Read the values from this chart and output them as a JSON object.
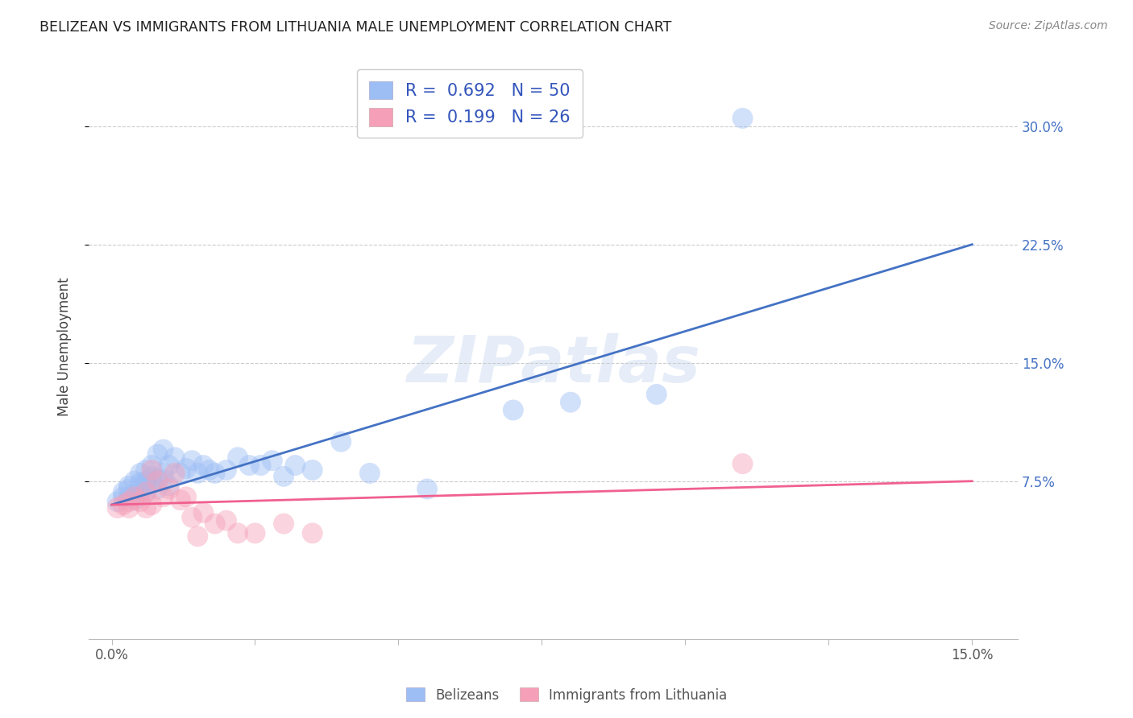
{
  "title": "BELIZEAN VS IMMIGRANTS FROM LITHUANIA MALE UNEMPLOYMENT CORRELATION CHART",
  "source": "Source: ZipAtlas.com",
  "ylabel": "Male Unemployment",
  "watermark": "ZIPatlas",
  "legend_blue_R": "0.692",
  "legend_blue_N": "50",
  "legend_pink_R": "0.199",
  "legend_pink_N": "26",
  "legend_label_blue": "Belizeans",
  "legend_label_pink": "Immigrants from Lithuania",
  "x_tick_positions": [
    0.0,
    0.025,
    0.05,
    0.075,
    0.1,
    0.125,
    0.15
  ],
  "x_tick_labels": [
    "0.0%",
    "",
    "",
    "",
    "",
    "",
    "15.0%"
  ],
  "y_tick_positions": [
    0.075,
    0.15,
    0.225,
    0.3
  ],
  "y_tick_labels": [
    "7.5%",
    "15.0%",
    "22.5%",
    "30.0%"
  ],
  "xlim": [
    -0.004,
    0.158
  ],
  "ylim": [
    -0.025,
    0.345
  ],
  "blue_scatter_color": "#9dbef5",
  "pink_scatter_color": "#f5a0b8",
  "blue_line_color": "#4472c4",
  "pink_line_color": "#f06090",
  "grid_color": "#cccccc",
  "background_color": "#ffffff",
  "blue_line_x0": 0.0,
  "blue_line_x1": 0.15,
  "blue_line_y0": 0.06,
  "blue_line_y1": 0.225,
  "pink_line_x0": 0.0,
  "pink_line_x1": 0.15,
  "pink_line_y0": 0.06,
  "pink_line_y1": 0.075,
  "blue_x": [
    0.001,
    0.002,
    0.002,
    0.003,
    0.003,
    0.003,
    0.004,
    0.004,
    0.005,
    0.005,
    0.005,
    0.005,
    0.006,
    0.006,
    0.006,
    0.006,
    0.007,
    0.007,
    0.007,
    0.008,
    0.008,
    0.008,
    0.009,
    0.009,
    0.009,
    0.01,
    0.01,
    0.011,
    0.012,
    0.013,
    0.014,
    0.015,
    0.016,
    0.017,
    0.018,
    0.02,
    0.022,
    0.024,
    0.026,
    0.028,
    0.03,
    0.032,
    0.035,
    0.04,
    0.045,
    0.055,
    0.07,
    0.08,
    0.095,
    0.11
  ],
  "blue_y": [
    0.062,
    0.065,
    0.068,
    0.065,
    0.07,
    0.072,
    0.063,
    0.075,
    0.068,
    0.072,
    0.074,
    0.08,
    0.068,
    0.072,
    0.075,
    0.082,
    0.075,
    0.078,
    0.085,
    0.07,
    0.076,
    0.092,
    0.076,
    0.08,
    0.095,
    0.072,
    0.085,
    0.09,
    0.08,
    0.083,
    0.088,
    0.08,
    0.085,
    0.082,
    0.08,
    0.082,
    0.09,
    0.085,
    0.085,
    0.088,
    0.078,
    0.085,
    0.082,
    0.1,
    0.08,
    0.07,
    0.12,
    0.125,
    0.13,
    0.305
  ],
  "pink_x": [
    0.001,
    0.002,
    0.003,
    0.003,
    0.004,
    0.005,
    0.006,
    0.006,
    0.007,
    0.007,
    0.008,
    0.009,
    0.01,
    0.011,
    0.012,
    0.013,
    0.014,
    0.015,
    0.016,
    0.018,
    0.02,
    0.022,
    0.025,
    0.03,
    0.035,
    0.11
  ],
  "pink_y": [
    0.058,
    0.06,
    0.058,
    0.062,
    0.065,
    0.062,
    0.068,
    0.058,
    0.06,
    0.082,
    0.075,
    0.065,
    0.07,
    0.08,
    0.063,
    0.065,
    0.052,
    0.04,
    0.055,
    0.048,
    0.05,
    0.042,
    0.042,
    0.048,
    0.042,
    0.086
  ],
  "scatter_size": 350,
  "scatter_alpha": 0.45,
  "line_width": 2.0
}
